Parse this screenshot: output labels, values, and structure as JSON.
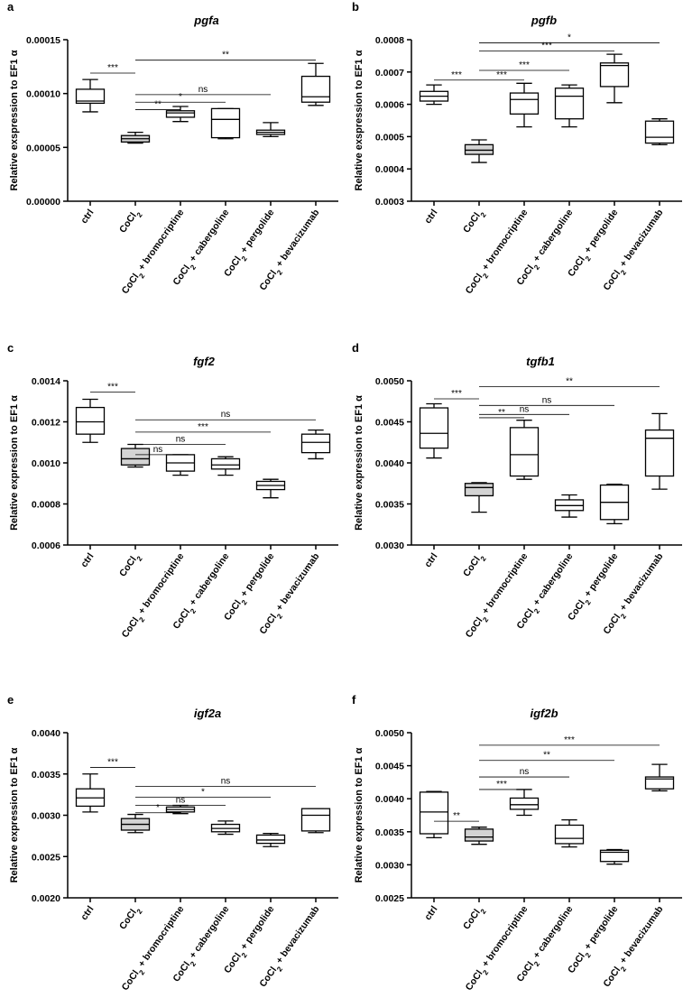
{
  "colors": {
    "box_default": "#ffffff",
    "box_highlight": "#d3d3d3",
    "stroke": "#000000"
  },
  "categories_sub": [
    "",
    "2",
    "2",
    "2",
    "2",
    "2"
  ],
  "chart_data": [
    {
      "type": "box",
      "panel": "a",
      "title": "pgfa",
      "ylabel": "Relative exspression to EF1 α",
      "categories": [
        "ctrl",
        "CoCl",
        "CoCl + bromocriptine",
        "CoCl + cabergoline",
        "CoCl + pergolide",
        "CoCl + bevacizumab"
      ],
      "ylim": [
        0,
        0.00015
      ],
      "yticks": [
        0,
        5e-05,
        0.0001,
        0.00015
      ],
      "ytick_labels": [
        "0.00000",
        "0.00005",
        "0.00010",
        "0.00015"
      ],
      "boxes": [
        {
          "min": 8.3e-05,
          "q1": 9.1e-05,
          "median": 9.3e-05,
          "q3": 0.000104,
          "max": 0.000113
        },
        {
          "min": 5.4e-05,
          "q1": 5.5e-05,
          "median": 5.8e-05,
          "q3": 6.1e-05,
          "max": 6.4e-05
        },
        {
          "min": 7.4e-05,
          "q1": 7.8e-05,
          "median": 8.2e-05,
          "q3": 8.4e-05,
          "max": 8.8e-05
        },
        {
          "min": 5.8e-05,
          "q1": 5.9e-05,
          "median": 7.6e-05,
          "q3": 8.6e-05,
          "max": 8.6e-05
        },
        {
          "min": 6e-05,
          "q1": 6.2e-05,
          "median": 6.4e-05,
          "q3": 6.6e-05,
          "max": 7.3e-05
        },
        {
          "min": 8.9e-05,
          "q1": 9.2e-05,
          "median": 9.7e-05,
          "q3": 0.000116,
          "max": 0.000128
        }
      ],
      "highlight": [
        1
      ],
      "comparisons": [
        {
          "from": 0,
          "to": 1,
          "y": 0.000119,
          "label": "***"
        },
        {
          "from": 1,
          "to": 5,
          "y": 0.000131,
          "label": "**"
        },
        {
          "from": 1,
          "to": 4,
          "y": 9.9e-05,
          "label": "ns"
        },
        {
          "from": 1,
          "to": 3,
          "y": 9.2e-05,
          "label": "*"
        },
        {
          "from": 1,
          "to": 2,
          "y": 8.5e-05,
          "label": "**"
        }
      ]
    },
    {
      "type": "box",
      "panel": "b",
      "title": "pgfb",
      "ylabel": "Relative exspression to EF1 α",
      "categories": [
        "ctrl",
        "CoCl",
        "CoCl + bromocriptine",
        "CoCl + cabergoline",
        "CoCl + pergolide",
        "CoCl + bevacizumab"
      ],
      "ylim": [
        0.0003,
        0.0008
      ],
      "yticks": [
        0.0003,
        0.0004,
        0.0005,
        0.0006,
        0.0007,
        0.0008
      ],
      "ytick_labels": [
        "0.0003",
        "0.0004",
        "0.0005",
        "0.0006",
        "0.0007",
        "0.0008"
      ],
      "boxes": [
        {
          "min": 0.0006,
          "q1": 0.00061,
          "median": 0.000625,
          "q3": 0.00064,
          "max": 0.00066
        },
        {
          "min": 0.00042,
          "q1": 0.000445,
          "median": 0.000458,
          "q3": 0.000475,
          "max": 0.00049
        },
        {
          "min": 0.00053,
          "q1": 0.00057,
          "median": 0.000615,
          "q3": 0.000635,
          "max": 0.000665
        },
        {
          "min": 0.00053,
          "q1": 0.000555,
          "median": 0.000625,
          "q3": 0.00065,
          "max": 0.00066
        },
        {
          "min": 0.000605,
          "q1": 0.000655,
          "median": 0.00072,
          "q3": 0.000728,
          "max": 0.000755
        },
        {
          "min": 0.000475,
          "q1": 0.00048,
          "median": 0.000498,
          "q3": 0.000548,
          "max": 0.000555
        }
      ],
      "highlight": [
        1
      ],
      "comparisons": [
        {
          "from": 0,
          "to": 1,
          "y": 0.000675,
          "label": "***"
        },
        {
          "from": 1,
          "to": 5,
          "y": 0.00079,
          "label": "*"
        },
        {
          "from": 1,
          "to": 4,
          "y": 0.000765,
          "label": "***"
        },
        {
          "from": 1,
          "to": 3,
          "y": 0.000705,
          "label": "***"
        },
        {
          "from": 1,
          "to": 2,
          "y": 0.000675,
          "label": "***"
        }
      ]
    },
    {
      "type": "box",
      "panel": "c",
      "title": "fgf2",
      "ylabel": "Relative expression to EF1 α",
      "categories": [
        "ctrl",
        "CoCl",
        "CoCl + bromocriptine",
        "CoCl + cabergoline",
        "CoCl + pergolide",
        "CoCl + bevacizumab"
      ],
      "ylim": [
        0.0006,
        0.0014
      ],
      "yticks": [
        0.0006,
        0.0008,
        0.001,
        0.0012,
        0.0014
      ],
      "ytick_labels": [
        "0.0006",
        "0.0008",
        "0.0010",
        "0.0012",
        "0.0014"
      ],
      "boxes": [
        {
          "min": 0.0011,
          "q1": 0.00114,
          "median": 0.0012,
          "q3": 0.00127,
          "max": 0.00131
        },
        {
          "min": 0.00098,
          "q1": 0.00099,
          "median": 0.00102,
          "q3": 0.00107,
          "max": 0.00109
        },
        {
          "min": 0.00094,
          "q1": 0.00096,
          "median": 0.001,
          "q3": 0.00104,
          "max": 0.00104
        },
        {
          "min": 0.00094,
          "q1": 0.00097,
          "median": 0.00099,
          "q3": 0.00102,
          "max": 0.00103
        },
        {
          "min": 0.00083,
          "q1": 0.00087,
          "median": 0.00089,
          "q3": 0.00091,
          "max": 0.00092
        },
        {
          "min": 0.00102,
          "q1": 0.00105,
          "median": 0.0011,
          "q3": 0.00114,
          "max": 0.00116
        }
      ],
      "highlight": [
        1
      ],
      "comparisons": [
        {
          "from": 0,
          "to": 1,
          "y": 0.001345,
          "label": "***"
        },
        {
          "from": 1,
          "to": 5,
          "y": 0.00121,
          "label": "ns"
        },
        {
          "from": 1,
          "to": 4,
          "y": 0.00115,
          "label": "***"
        },
        {
          "from": 1,
          "to": 3,
          "y": 0.00109,
          "label": "ns"
        },
        {
          "from": 1,
          "to": 2,
          "y": 0.00104,
          "label": "ns"
        }
      ]
    },
    {
      "type": "box",
      "panel": "d",
      "title": "tgfb1",
      "ylabel": "Relative expression to EF1 α",
      "categories": [
        "ctrl",
        "CoCl",
        "CoCl + bromocriptine",
        "CoCl + cabergoline",
        "CoCl + pergolide",
        "CoCl + bevacizumab"
      ],
      "ylim": [
        0.003,
        0.005
      ],
      "yticks": [
        0.003,
        0.0035,
        0.004,
        0.0045,
        0.005
      ],
      "ytick_labels": [
        "0.0030",
        "0.0035",
        "0.0040",
        "0.0045",
        "0.0050"
      ],
      "boxes": [
        {
          "min": 0.00406,
          "q1": 0.00418,
          "median": 0.00436,
          "q3": 0.00467,
          "max": 0.00472
        },
        {
          "min": 0.0034,
          "q1": 0.0036,
          "median": 0.0037,
          "q3": 0.00375,
          "max": 0.00376
        },
        {
          "min": 0.0038,
          "q1": 0.00384,
          "median": 0.0041,
          "q3": 0.00443,
          "max": 0.00452
        },
        {
          "min": 0.00334,
          "q1": 0.00342,
          "median": 0.00348,
          "q3": 0.00355,
          "max": 0.00361
        },
        {
          "min": 0.00326,
          "q1": 0.00331,
          "median": 0.00352,
          "q3": 0.00373,
          "max": 0.00374
        },
        {
          "min": 0.00368,
          "q1": 0.00384,
          "median": 0.0043,
          "q3": 0.0044,
          "max": 0.0046
        }
      ],
      "highlight": [
        1
      ],
      "comparisons": [
        {
          "from": 0,
          "to": 1,
          "y": 0.00478,
          "label": "***"
        },
        {
          "from": 1,
          "to": 5,
          "y": 0.00493,
          "label": "**"
        },
        {
          "from": 1,
          "to": 4,
          "y": 0.0047,
          "label": "ns"
        },
        {
          "from": 1,
          "to": 3,
          "y": 0.00459,
          "label": "ns"
        },
        {
          "from": 1,
          "to": 2,
          "y": 0.00455,
          "label": "**"
        }
      ]
    },
    {
      "type": "box",
      "panel": "e",
      "title": "igf2a",
      "ylabel": "Relative expression to EF1 α",
      "categories": [
        "ctrl",
        "CoCl",
        "CoCl + bromocriptine",
        "CoCl + cabergoline",
        "CoCl + pergolide",
        "CoCl + bevacizumab"
      ],
      "ylim": [
        0.002,
        0.004
      ],
      "yticks": [
        0.002,
        0.0025,
        0.003,
        0.0035,
        0.004
      ],
      "ytick_labels": [
        "0.0020",
        "0.0025",
        "0.0030",
        "0.0035",
        "0.0040"
      ],
      "boxes": [
        {
          "min": 0.00304,
          "q1": 0.00311,
          "median": 0.00321,
          "q3": 0.00332,
          "max": 0.0035
        },
        {
          "min": 0.00279,
          "q1": 0.00282,
          "median": 0.00289,
          "q3": 0.00296,
          "max": 0.00301
        },
        {
          "min": 0.00302,
          "q1": 0.00304,
          "median": 0.00307,
          "q3": 0.0031,
          "max": 0.00312
        },
        {
          "min": 0.00277,
          "q1": 0.0028,
          "median": 0.00284,
          "q3": 0.00289,
          "max": 0.00293
        },
        {
          "min": 0.00262,
          "q1": 0.00266,
          "median": 0.0027,
          "q3": 0.00276,
          "max": 0.00278
        },
        {
          "min": 0.00279,
          "q1": 0.00281,
          "median": 0.003,
          "q3": 0.00308,
          "max": 0.00308
        }
      ],
      "highlight": [
        1
      ],
      "comparisons": [
        {
          "from": 0,
          "to": 1,
          "y": 0.00358,
          "label": "***"
        },
        {
          "from": 1,
          "to": 5,
          "y": 0.00335,
          "label": "ns"
        },
        {
          "from": 1,
          "to": 4,
          "y": 0.00322,
          "label": "*"
        },
        {
          "from": 1,
          "to": 3,
          "y": 0.00312,
          "label": "ns"
        },
        {
          "from": 1,
          "to": 2,
          "y": 0.00303,
          "label": "*"
        }
      ]
    },
    {
      "type": "box",
      "panel": "f",
      "title": "igf2b",
      "ylabel": "Relative expression to EF1 α",
      "categories": [
        "ctrl",
        "CoCl",
        "CoCl + bromocriptine",
        "CoCl + cabergoline",
        "CoCl + pergolide",
        "CoCl + bevacizumab"
      ],
      "ylim": [
        0.0025,
        0.005
      ],
      "yticks": [
        0.0025,
        0.003,
        0.0035,
        0.004,
        0.0045,
        0.005
      ],
      "ytick_labels": [
        "0.0025",
        "0.0030",
        "0.0035",
        "0.0040",
        "0.0045",
        "0.0050"
      ],
      "boxes": [
        {
          "min": 0.00341,
          "q1": 0.00347,
          "median": 0.0038,
          "q3": 0.0041,
          "max": 0.00411
        },
        {
          "min": 0.00331,
          "q1": 0.00336,
          "median": 0.00342,
          "q3": 0.00354,
          "max": 0.00357
        },
        {
          "min": 0.00375,
          "q1": 0.00384,
          "median": 0.00391,
          "q3": 0.00401,
          "max": 0.00414
        },
        {
          "min": 0.00327,
          "q1": 0.00332,
          "median": 0.0034,
          "q3": 0.0036,
          "max": 0.00368
        },
        {
          "min": 0.00301,
          "q1": 0.00305,
          "median": 0.00319,
          "q3": 0.00322,
          "max": 0.00323
        },
        {
          "min": 0.00412,
          "q1": 0.00415,
          "median": 0.0043,
          "q3": 0.00433,
          "max": 0.00452
        }
      ],
      "highlight": [
        1
      ],
      "comparisons": [
        {
          "from": 0,
          "to": 1,
          "y": 0.00366,
          "label": "**"
        },
        {
          "from": 1,
          "to": 5,
          "y": 0.00481,
          "label": "***"
        },
        {
          "from": 1,
          "to": 4,
          "y": 0.00458,
          "label": "**"
        },
        {
          "from": 1,
          "to": 3,
          "y": 0.00433,
          "label": "ns"
        },
        {
          "from": 1,
          "to": 2,
          "y": 0.00414,
          "label": "***"
        }
      ]
    }
  ]
}
